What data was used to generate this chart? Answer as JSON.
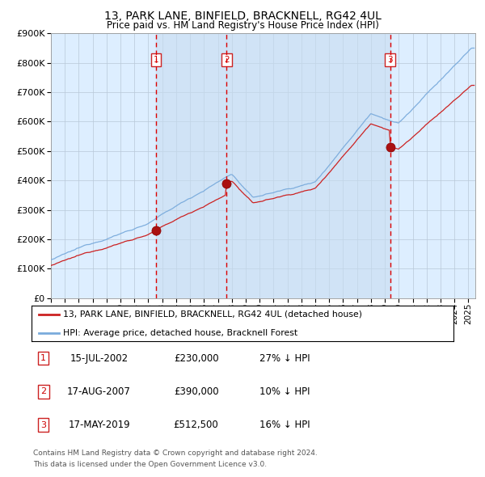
{
  "title": "13, PARK LANE, BINFIELD, BRACKNELL, RG42 4UL",
  "subtitle": "Price paid vs. HM Land Registry's House Price Index (HPI)",
  "legend_line1": "13, PARK LANE, BINFIELD, BRACKNELL, RG42 4UL (detached house)",
  "legend_line2": "HPI: Average price, detached house, Bracknell Forest",
  "footnote1": "Contains HM Land Registry data © Crown copyright and database right 2024.",
  "footnote2": "This data is licensed under the Open Government Licence v3.0.",
  "sales": [
    {
      "num": 1,
      "date": "15-JUL-2002",
      "price": 230000,
      "hpi_note": "27% ↓ HPI"
    },
    {
      "num": 2,
      "date": "17-AUG-2007",
      "price": 390000,
      "hpi_note": "10% ↓ HPI"
    },
    {
      "num": 3,
      "date": "17-MAY-2019",
      "price": 512500,
      "hpi_note": "16% ↓ HPI"
    }
  ],
  "sale_dates_decimal": [
    2002.537,
    2007.628,
    2019.371
  ],
  "hpi_color": "#7aabdc",
  "price_color": "#cc2222",
  "background_color": "#ddeeff",
  "plot_bg_color": "#ffffff",
  "sale_vline_color": "#dd0000",
  "ylim": [
    0,
    900000
  ],
  "yticks": [
    0,
    100000,
    200000,
    300000,
    400000,
    500000,
    600000,
    700000,
    800000,
    900000
  ],
  "xlim_start": 1995.0,
  "xlim_end": 2025.5
}
